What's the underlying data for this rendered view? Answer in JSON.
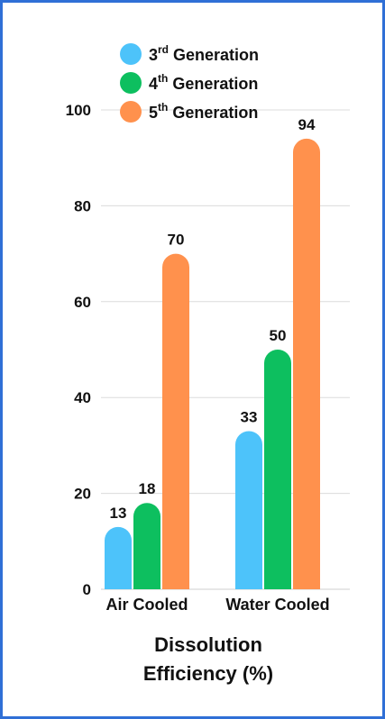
{
  "chart_data": {
    "type": "bar",
    "title": "",
    "xlabel": "Dissolution Efficiency (%)",
    "xlabel_lines": [
      "Dissolution",
      "Efficiency (%)"
    ],
    "ylabel": "",
    "ylim": [
      0,
      100
    ],
    "yticks": [
      0,
      20,
      40,
      60,
      80,
      100
    ],
    "grid": true,
    "legend_placement": "top",
    "categories": [
      "Air Cooled",
      "Water Cooled"
    ],
    "series": [
      {
        "name": "3rd Generation",
        "base": "3",
        "sup": "rd",
        "tail": " Generation",
        "color": "#4dc3fa",
        "values": [
          13,
          33
        ]
      },
      {
        "name": "4th Generation",
        "base": "4",
        "sup": "th",
        "tail": " Generation",
        "color": "#0dbf5f",
        "values": [
          18,
          50
        ]
      },
      {
        "name": "5th Generation",
        "base": "5",
        "sup": "th",
        "tail": " Generation",
        "color": "#ff914d",
        "values": [
          70,
          94
        ]
      }
    ]
  }
}
